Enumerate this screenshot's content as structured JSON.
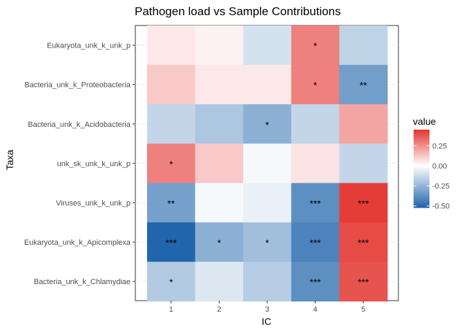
{
  "chart_data": {
    "type": "heatmap",
    "title": "Pathogen load vs Sample Contributions",
    "xlabel": "IC",
    "ylabel": "Taxa",
    "x_categories": [
      "1",
      "2",
      "3",
      "4",
      "5"
    ],
    "y_categories": [
      "Eukaryota_unk_k_unk_p",
      "Bacteria_unk_k_Proteobacteria",
      "Bacteria_unk_k_Acidobacteria",
      "unk_sk_unk_k_unk_p",
      "Viruses_unk_k_unk_p",
      "Eukaryota_unk_k_Apicomplexa",
      "Bacteria_unk_k_Chlamydiae"
    ],
    "values": [
      [
        0.05,
        0.03,
        -0.1,
        0.28,
        -0.15
      ],
      [
        0.12,
        0.05,
        0.05,
        0.28,
        -0.33
      ],
      [
        -0.14,
        -0.19,
        -0.27,
        -0.14,
        0.2
      ],
      [
        0.28,
        0.12,
        -0.02,
        0.06,
        -0.14
      ],
      [
        -0.32,
        -0.02,
        -0.05,
        -0.38,
        0.43
      ],
      [
        -0.52,
        -0.27,
        -0.22,
        -0.42,
        0.4
      ],
      [
        -0.18,
        -0.08,
        -0.17,
        -0.38,
        0.38
      ]
    ],
    "significance": [
      [
        "",
        "",
        "",
        "*",
        ""
      ],
      [
        "",
        "",
        "",
        "*",
        "**"
      ],
      [
        "",
        "",
        "*",
        "",
        ""
      ],
      [
        "*",
        "",
        "",
        "",
        ""
      ],
      [
        "**",
        "",
        "",
        "***",
        "***"
      ],
      [
        "***",
        "*",
        "*",
        "***",
        "***"
      ],
      [
        "*",
        "",
        "",
        "***",
        "***"
      ]
    ],
    "legend": {
      "title": "value",
      "ticks": [
        0.25,
        0.0,
        -0.25,
        -0.5
      ],
      "tick_labels": [
        "0.25",
        "0.00",
        "-0.25",
        "-0.50"
      ],
      "range": [
        -0.52,
        0.45
      ],
      "position": "right"
    },
    "colors": {
      "low": "#2166ac",
      "mid": "#ffffff",
      "high": "#e3342f"
    },
    "grid": true
  }
}
